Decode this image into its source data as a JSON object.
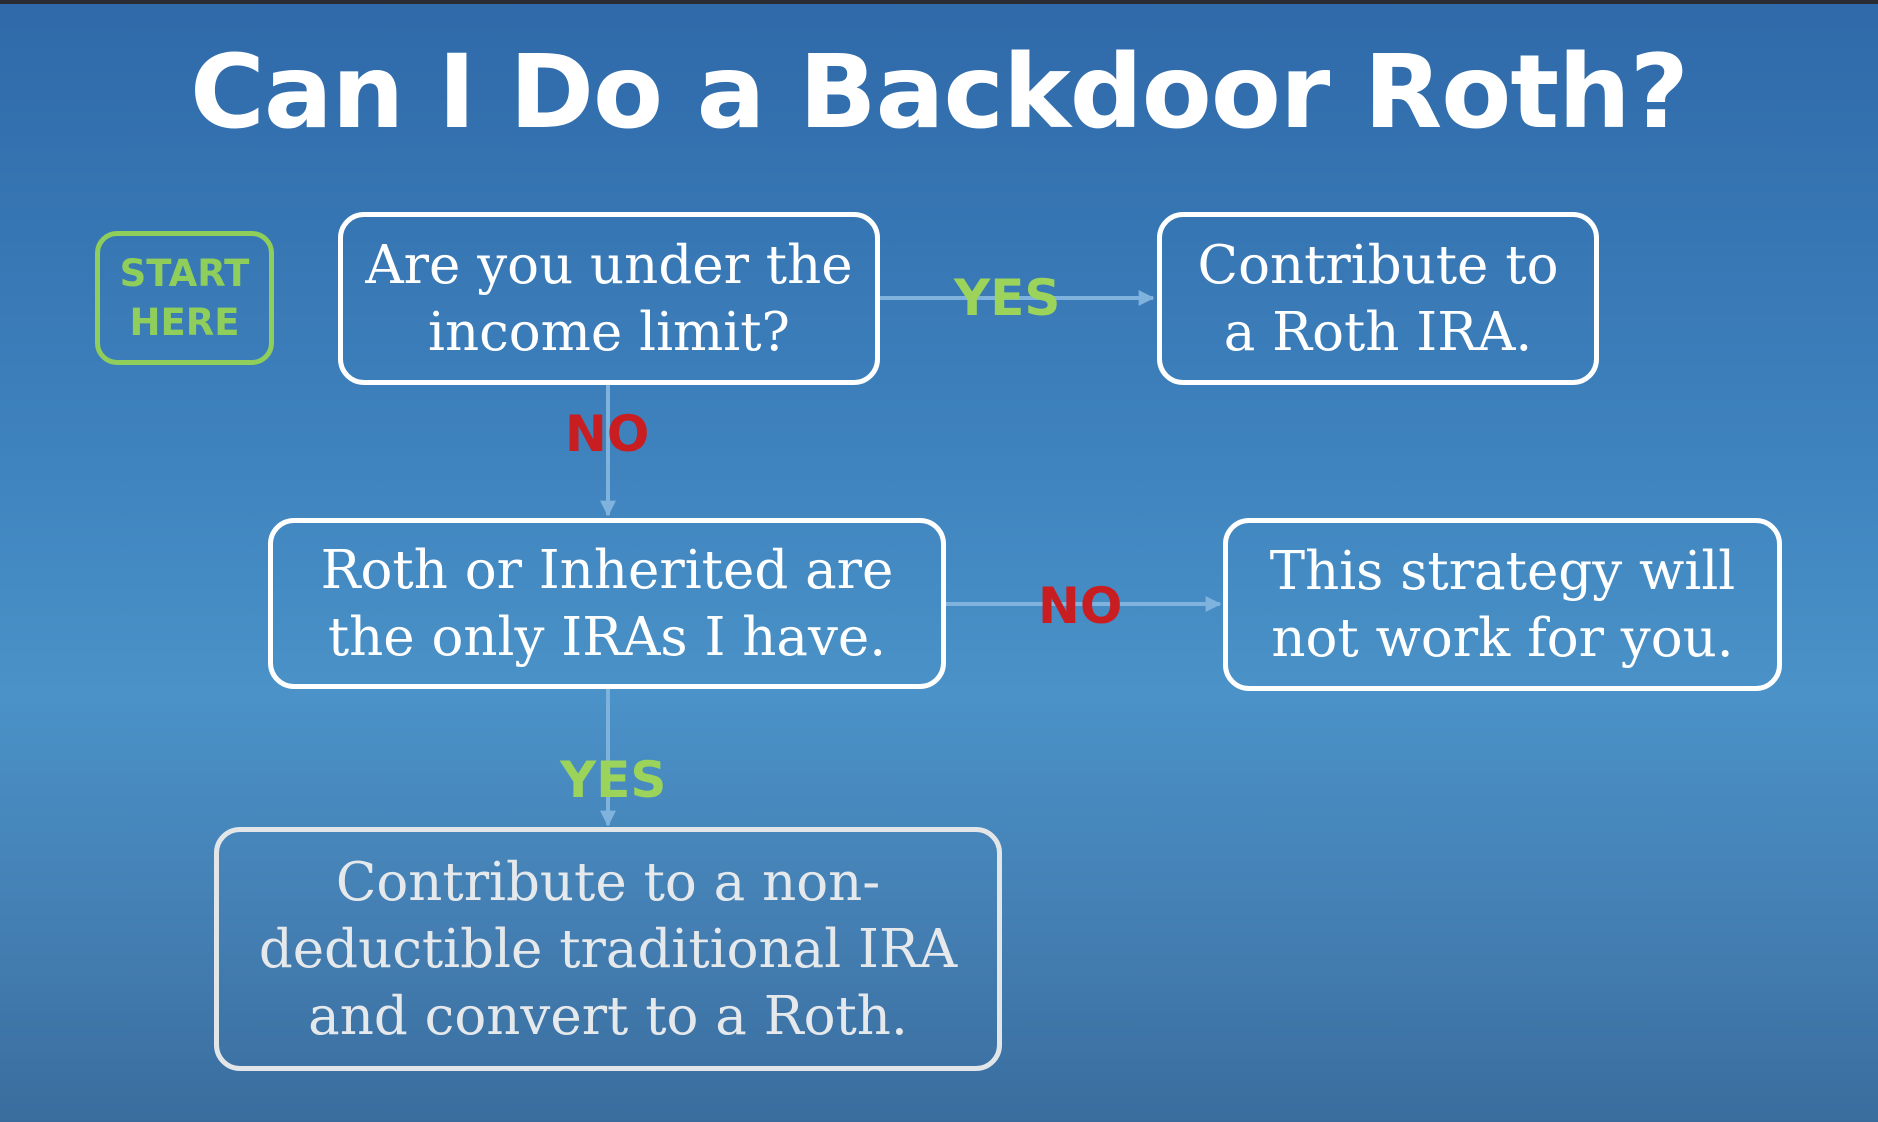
{
  "diagram": {
    "title": "Can I Do a Backdoor Roth?",
    "start": {
      "line1": "START",
      "line2": "HERE"
    },
    "nodes": {
      "income_limit": {
        "line1": "Are you under the",
        "line2": "income limit?"
      },
      "roth_ira": {
        "line1": "Contribute to",
        "line2": "a Roth IRA."
      },
      "only_iras": {
        "line1": "Roth or Inherited are",
        "line2": "the only IRAs I have."
      },
      "not_work": {
        "line1": "This strategy will",
        "line2": "not work for you."
      },
      "backdoor": {
        "line1": "Contribute to a non-",
        "line2": "deductible traditional IRA",
        "line3": "and convert to a Roth."
      }
    },
    "edges": {
      "income_yes": "YES",
      "income_no": "NO",
      "iras_no": "NO",
      "iras_yes": "YES"
    },
    "colors": {
      "yes": "#9bd35b",
      "no": "#c81e22",
      "start": "#8fce5a",
      "arrow": "#7fb2dc"
    }
  }
}
